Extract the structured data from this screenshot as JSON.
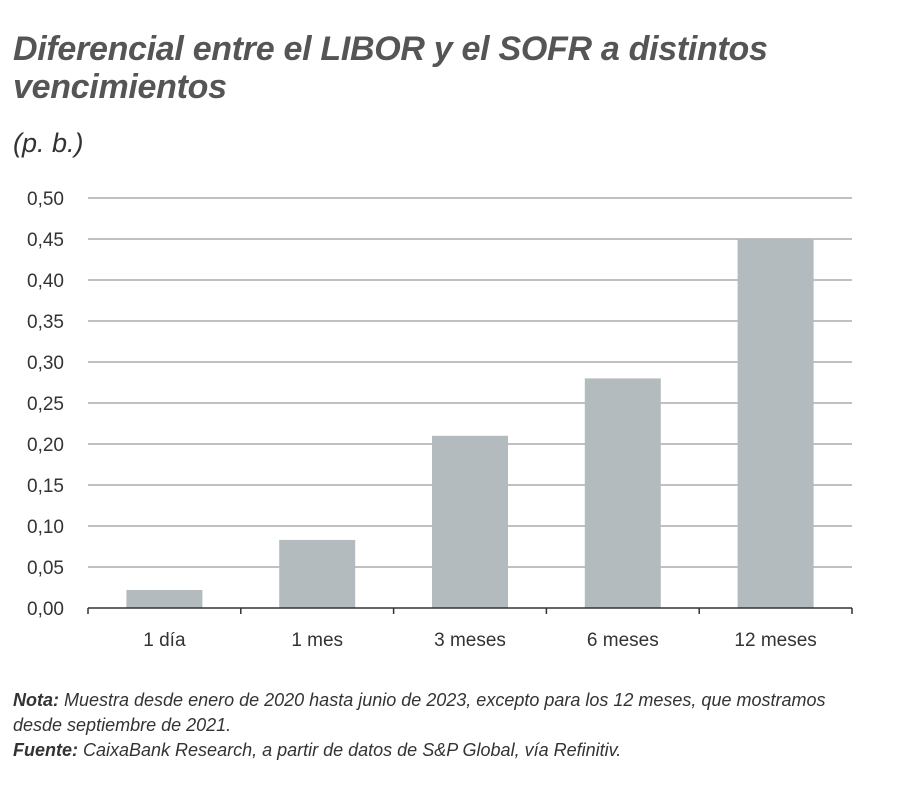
{
  "title": "Diferencial entre el LIBOR y el SOFR a distintos vencimientos",
  "subtitle": "(p. b.)",
  "colors": {
    "bar": "#b3bbbe",
    "grid": "#9a9a9a",
    "axis": "#333333"
  },
  "chart_data": {
    "type": "bar",
    "categories": [
      "1 día",
      "1 mes",
      "3 meses",
      "6 meses",
      "12 meses"
    ],
    "values": [
      0.022,
      0.083,
      0.21,
      0.28,
      0.45
    ],
    "ylim": [
      0,
      0.5
    ],
    "yticks": [
      "0,00",
      "0,05",
      "0,10",
      "0,15",
      "0,20",
      "0,25",
      "0,30",
      "0,35",
      "0,40",
      "0,45",
      "0,50"
    ],
    "grid": true,
    "legend": "none"
  },
  "notes": {
    "nota_label": "Nota:",
    "nota_text": " Muestra desde enero de 2020 hasta junio de 2023, excepto para los 12 meses, que mostramos desde septiembre de 2021.",
    "fuente_label": "Fuente:",
    "fuente_text": " CaixaBank Research, a partir de datos de S&P Global, vía Refinitiv."
  }
}
